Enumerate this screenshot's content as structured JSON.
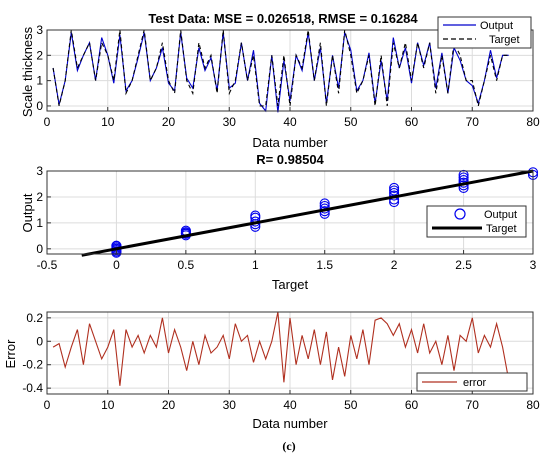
{
  "chart_data": [
    {
      "type": "line",
      "title": "Test Data: MSE = 0.026518, RMSE = 0.16284",
      "xlabel": "Data number",
      "ylabel": "Scale thickness",
      "xlim": [
        0,
        80
      ],
      "ylim": [
        -0.2,
        3
      ],
      "xticks": [
        "0",
        "10",
        "20",
        "30",
        "40",
        "50",
        "60",
        "70",
        "80"
      ],
      "yticks": [
        "0",
        "1",
        "2",
        "3"
      ],
      "grid": true,
      "legend_position": "top-right",
      "x": [
        1,
        2,
        3,
        4,
        5,
        6,
        7,
        8,
        9,
        10,
        11,
        12,
        13,
        14,
        15,
        16,
        17,
        18,
        19,
        20,
        21,
        22,
        23,
        24,
        25,
        26,
        27,
        28,
        29,
        30,
        31,
        32,
        33,
        34,
        35,
        36,
        37,
        38,
        39,
        40,
        41,
        42,
        43,
        44,
        45,
        46,
        47,
        48,
        49,
        50,
        51,
        52,
        53,
        54,
        55,
        56,
        57,
        58,
        59,
        60,
        61,
        62,
        63,
        64,
        65,
        66,
        67,
        68,
        69,
        70,
        71,
        72,
        73,
        74,
        75,
        76
      ],
      "series": [
        {
          "name": "Output",
          "color": "#0000cc",
          "style": "solid",
          "values": [
            1.5,
            0.05,
            1.0,
            2.9,
            1.4,
            2.0,
            2.5,
            1.0,
            2.7,
            2.0,
            0.9,
            2.8,
            0.6,
            1.0,
            1.9,
            2.9,
            1.0,
            1.5,
            2.3,
            0.9,
            0.6,
            2.9,
            1.1,
            0.7,
            2.3,
            1.4,
            1.9,
            0.6,
            2.9,
            0.7,
            0.9,
            2.5,
            1.0,
            2.2,
            0.1,
            -0.2,
            2.0,
            -0.25,
            1.8,
            0.2,
            2.0,
            1.4,
            2.9,
            1.0,
            2.3,
            0.1,
            2.0,
            0.7,
            2.9,
            2.2,
            0.6,
            1.0,
            2.1,
            0.1,
            1.8,
            0.2,
            2.7,
            1.5,
            2.3,
            0.9,
            2.5,
            1.6,
            2.5,
            0.7,
            2.1,
            0.5,
            2.3,
            1.8,
            1.0,
            0.8,
            0.1,
            1.0,
            2.2,
            1.1,
            2.0,
            2.0
          ]
        },
        {
          "name": "Target",
          "color": "#000000",
          "style": "dashed",
          "values": [
            1.5,
            0.0,
            1.0,
            3.0,
            1.5,
            2.0,
            2.5,
            1.0,
            2.5,
            2.0,
            1.0,
            3.0,
            0.5,
            1.0,
            2.0,
            3.0,
            1.0,
            1.5,
            2.5,
            1.0,
            0.5,
            3.0,
            1.0,
            0.5,
            2.5,
            1.5,
            2.0,
            0.5,
            3.0,
            0.5,
            1.0,
            2.5,
            1.0,
            2.0,
            0.0,
            0.0,
            2.0,
            0.0,
            2.0,
            0.0,
            2.0,
            1.5,
            3.0,
            1.0,
            2.5,
            0.0,
            2.0,
            0.5,
            3.0,
            2.0,
            0.5,
            1.0,
            2.0,
            0.0,
            2.0,
            0.0,
            2.5,
            1.5,
            2.5,
            1.0,
            2.5,
            1.5,
            2.5,
            0.5,
            2.0,
            0.5,
            2.5,
            2.0,
            1.0,
            1.0,
            0.0,
            1.0,
            2.0,
            1.0,
            2.0,
            2.0
          ]
        }
      ]
    },
    {
      "type": "scatter",
      "title": "R= 0.98504",
      "xlabel": "Target",
      "ylabel": "Output",
      "xlim": [
        -0.5,
        3
      ],
      "ylim": [
        -0.2,
        3
      ],
      "xticks": [
        "-0.5",
        "0",
        "0.5",
        "1",
        "1.5",
        "2",
        "2.5",
        "3"
      ],
      "yticks": [
        "0",
        "1",
        "2",
        "3"
      ],
      "grid": true,
      "legend_position": "right",
      "points_name": "Output",
      "points_color": "#0000ee",
      "fit_name": "Target",
      "fit_color": "#000000",
      "fit_x": [
        -0.25,
        3
      ],
      "fit_y": [
        -0.25,
        3
      ],
      "points": [
        [
          0,
          0.1
        ],
        [
          0,
          0.05
        ],
        [
          0,
          0.0
        ],
        [
          0,
          -0.05
        ],
        [
          0,
          -0.1
        ],
        [
          0,
          -0.15
        ],
        [
          0,
          0.12
        ],
        [
          0.5,
          0.52
        ],
        [
          0.5,
          0.58
        ],
        [
          0.5,
          0.64
        ],
        [
          0.5,
          0.7
        ],
        [
          0.5,
          0.6
        ],
        [
          1,
          0.85
        ],
        [
          1,
          0.95
        ],
        [
          1,
          1.05
        ],
        [
          1,
          1.2
        ],
        [
          1,
          1.28
        ],
        [
          1.5,
          1.35
        ],
        [
          1.5,
          1.45
        ],
        [
          1.5,
          1.55
        ],
        [
          1.5,
          1.65
        ],
        [
          1.5,
          1.75
        ],
        [
          2,
          1.8
        ],
        [
          2,
          1.9
        ],
        [
          2,
          2.05
        ],
        [
          2,
          2.15
        ],
        [
          2,
          2.25
        ],
        [
          2,
          2.35
        ],
        [
          2.5,
          2.35
        ],
        [
          2.5,
          2.45
        ],
        [
          2.5,
          2.55
        ],
        [
          2.5,
          2.65
        ],
        [
          2.5,
          2.75
        ],
        [
          2.5,
          2.85
        ],
        [
          3,
          2.85
        ],
        [
          3,
          2.95
        ]
      ]
    },
    {
      "type": "line",
      "title": "",
      "xlabel": "Data number",
      "ylabel": "Error",
      "xlim": [
        0,
        80
      ],
      "ylim": [
        -0.45,
        0.25
      ],
      "xticks": [
        "0",
        "10",
        "20",
        "30",
        "40",
        "50",
        "60",
        "70",
        "80"
      ],
      "yticks": [
        "0.2",
        "0",
        "-0.2",
        "-0.4"
      ],
      "grid": true,
      "legend_position": "bottom-right",
      "x": [
        1,
        2,
        3,
        4,
        5,
        6,
        7,
        8,
        9,
        10,
        11,
        12,
        13,
        14,
        15,
        16,
        17,
        18,
        19,
        20,
        21,
        22,
        23,
        24,
        25,
        26,
        27,
        28,
        29,
        30,
        31,
        32,
        33,
        34,
        35,
        36,
        37,
        38,
        39,
        40,
        41,
        42,
        43,
        44,
        45,
        46,
        47,
        48,
        49,
        50,
        51,
        52,
        53,
        54,
        55,
        56,
        57,
        58,
        59,
        60,
        61,
        62,
        63,
        64,
        65,
        66,
        67,
        68,
        69,
        70,
        71,
        72,
        73,
        74,
        75,
        76
      ],
      "series": [
        {
          "name": "error",
          "color": "#b03020",
          "values": [
            -0.05,
            -0.02,
            -0.22,
            -0.05,
            0.1,
            -0.2,
            0.15,
            0.0,
            -0.15,
            -0.05,
            0.1,
            -0.38,
            0.1,
            -0.05,
            0.05,
            -0.1,
            0.05,
            -0.05,
            0.2,
            -0.1,
            0.1,
            -0.05,
            -0.25,
            0.0,
            -0.2,
            0.05,
            -0.1,
            -0.05,
            0.05,
            -0.15,
            0.15,
            0.0,
            0.05,
            -0.18,
            0.0,
            -0.15,
            0.0,
            0.25,
            -0.35,
            0.2,
            -0.2,
            0.05,
            -0.15,
            0.1,
            -0.2,
            0.08,
            -0.33,
            -0.05,
            -0.3,
            0.05,
            -0.15,
            0.1,
            -0.2,
            0.18,
            0.2,
            0.15,
            0.05,
            0.15,
            -0.05,
            0.1,
            -0.1,
            0.15,
            -0.1,
            0.0,
            -0.2,
            0.05,
            -0.25,
            0.05,
            0.0,
            0.2,
            -0.1,
            0.05,
            -0.05,
            0.15,
            -0.05,
            -0.33
          ]
        }
      ]
    }
  ],
  "caption": "(c)"
}
